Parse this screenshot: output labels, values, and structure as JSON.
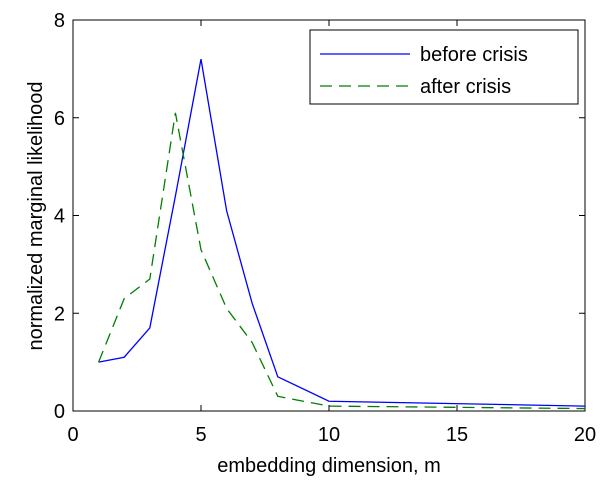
{
  "chart_data": {
    "type": "line",
    "xlabel": "embedding dimension, m",
    "ylabel": "normalized marginal likelihood",
    "x": [
      1,
      2,
      3,
      4,
      5,
      6,
      7,
      8,
      10,
      20
    ],
    "series": [
      {
        "name": "before crisis",
        "color": "#0000ff",
        "dash": "solid",
        "values": [
          1.0,
          1.1,
          1.7,
          4.4,
          7.2,
          4.1,
          2.2,
          0.7,
          0.2,
          0.1
        ]
      },
      {
        "name": "after crisis",
        "color": "#007f00",
        "dash": "dashed",
        "values": [
          1.0,
          2.3,
          2.7,
          6.1,
          3.3,
          2.1,
          1.4,
          0.3,
          0.1,
          0.05
        ]
      }
    ],
    "xlim": [
      0,
      20
    ],
    "xticks": [
      0,
      5,
      10,
      15,
      20
    ],
    "ylim": [
      0,
      8
    ],
    "yticks": [
      0,
      2,
      4,
      6,
      8
    ],
    "legend": "upper-right"
  }
}
